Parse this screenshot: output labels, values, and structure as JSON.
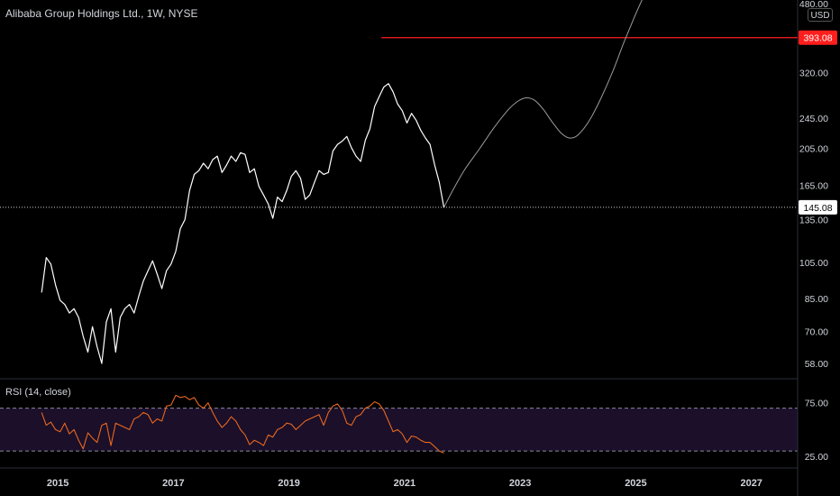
{
  "header": {
    "symbol_title": "Alibaba Group Holdings Ltd., 1W, NYSE",
    "currency": "USD"
  },
  "indicator": {
    "label": "RSI (14, close)",
    "upper_band": 70,
    "lower_band": 30,
    "axis_ticks": [
      "75.00",
      "25.00"
    ]
  },
  "colors": {
    "background": "#000000",
    "price_line": "#ffffff",
    "rsi_line": "#e8681e",
    "rsi_band_fill": "#1b0f2a",
    "target_line": "#ff1e1e",
    "projection_line": "#9c9c9c",
    "axis_text": "#d1d4dc"
  },
  "chart_data": [
    {
      "type": "line",
      "name": "price",
      "y_scale": "log",
      "x_tick_labels": [
        "2015",
        "2017",
        "2019",
        "2021",
        "2023",
        "2025",
        "2027"
      ],
      "y_tick_labels": [
        "480.00",
        "320.00",
        "245.00",
        "205.00",
        "165.00",
        "135.00",
        "105.00",
        "85.00",
        "70.00",
        "58.00"
      ],
      "price_labels": {
        "target": "393.08",
        "current": "145.08"
      },
      "series": [
        {
          "x": [
            2014.72,
            2014.8,
            2014.88,
            2014.96,
            2015.04,
            2015.12,
            2015.2,
            2015.28,
            2015.36,
            2015.44,
            2015.52,
            2015.6,
            2015.68,
            2015.76,
            2015.84,
            2015.92,
            2016.0,
            2016.08,
            2016.16,
            2016.24,
            2016.32,
            2016.4,
            2016.48,
            2016.56,
            2016.64,
            2016.72,
            2016.8,
            2016.88,
            2016.96,
            2017.04,
            2017.12,
            2017.2,
            2017.28,
            2017.36,
            2017.44,
            2017.52,
            2017.6,
            2017.68,
            2017.76,
            2017.84,
            2017.92,
            2018.0,
            2018.08,
            2018.16,
            2018.24,
            2018.32,
            2018.4,
            2018.48,
            2018.56,
            2018.64,
            2018.72,
            2018.8,
            2018.88,
            2018.96,
            2019.04,
            2019.12,
            2019.2,
            2019.28,
            2019.36,
            2019.44,
            2019.52,
            2019.6,
            2019.68,
            2019.76,
            2019.84,
            2019.92,
            2020.0,
            2020.08,
            2020.16,
            2020.24,
            2020.32,
            2020.4,
            2020.48,
            2020.56,
            2020.64,
            2020.72,
            2020.8,
            2020.88,
            2020.96,
            2021.04,
            2021.12,
            2021.2,
            2021.28,
            2021.36,
            2021.44,
            2021.52,
            2021.6,
            2021.68
          ],
          "y": [
            88,
            108,
            104,
            92,
            84,
            82,
            78,
            80,
            76,
            68,
            62,
            72,
            64,
            58,
            74,
            80,
            62,
            76,
            80,
            82,
            78,
            86,
            94,
            100,
            106,
            98,
            90,
            100,
            104,
            112,
            128,
            135,
            160,
            176,
            180,
            188,
            182,
            192,
            196,
            178,
            186,
            196,
            190,
            200,
            198,
            178,
            182,
            164,
            156,
            148,
            136,
            154,
            150,
            160,
            174,
            180,
            172,
            152,
            156,
            168,
            180,
            176,
            178,
            202,
            210,
            214,
            220,
            206,
            196,
            190,
            215,
            230,
            262,
            278,
            294,
            300,
            286,
            266,
            256,
            238,
            252,
            242,
            228,
            218,
            210,
            186,
            168,
            145
          ]
        }
      ],
      "projection": {
        "x": [
          2021.68,
          2021.85,
          2022.05,
          2022.3,
          2022.55,
          2022.8,
          2022.95,
          2023.1,
          2023.25,
          2023.4,
          2023.55,
          2023.7,
          2023.85,
          2024.0,
          2024.2,
          2024.4,
          2024.6,
          2024.8,
          2025.0,
          2025.2
        ],
        "y": [
          145,
          162,
          182,
          205,
          232,
          258,
          270,
          276,
          272,
          258,
          240,
          225,
          218,
          222,
          242,
          276,
          322,
          384,
          452,
          525
        ]
      },
      "target_line": {
        "y": 393.08,
        "x_start": 2020.6
      },
      "current_line": {
        "y": 145.08
      }
    },
    {
      "type": "line",
      "name": "rsi",
      "ylim": [
        25,
        95
      ],
      "series": [
        {
          "x": [
            2014.72,
            2014.8,
            2014.88,
            2014.96,
            2015.04,
            2015.12,
            2015.2,
            2015.28,
            2015.36,
            2015.44,
            2015.52,
            2015.6,
            2015.68,
            2015.76,
            2015.84,
            2015.92,
            2016.0,
            2016.08,
            2016.16,
            2016.24,
            2016.32,
            2016.4,
            2016.48,
            2016.56,
            2016.64,
            2016.72,
            2016.8,
            2016.88,
            2016.96,
            2017.04,
            2017.12,
            2017.2,
            2017.28,
            2017.36,
            2017.44,
            2017.52,
            2017.6,
            2017.68,
            2017.76,
            2017.84,
            2017.92,
            2018.0,
            2018.08,
            2018.16,
            2018.24,
            2018.32,
            2018.4,
            2018.48,
            2018.56,
            2018.64,
            2018.72,
            2018.8,
            2018.88,
            2018.96,
            2019.04,
            2019.12,
            2019.2,
            2019.28,
            2019.36,
            2019.44,
            2019.52,
            2019.6,
            2019.68,
            2019.76,
            2019.84,
            2019.92,
            2020.0,
            2020.08,
            2020.16,
            2020.24,
            2020.32,
            2020.4,
            2020.48,
            2020.56,
            2020.64,
            2020.72,
            2020.8,
            2020.88,
            2020.96,
            2021.04,
            2021.12,
            2021.2,
            2021.28,
            2021.36,
            2021.44,
            2021.52,
            2021.6,
            2021.68
          ],
          "y": [
            66,
            54,
            57,
            50,
            48,
            56,
            46,
            50,
            40,
            32,
            47,
            42,
            38,
            54,
            56,
            35,
            56,
            54,
            52,
            50,
            60,
            62,
            66,
            64,
            56,
            60,
            58,
            72,
            73,
            82,
            80,
            81,
            78,
            80,
            73,
            70,
            75,
            66,
            58,
            52,
            56,
            62,
            58,
            50,
            45,
            36,
            40,
            38,
            35,
            45,
            43,
            50,
            52,
            56,
            55,
            50,
            54,
            58,
            60,
            62,
            64,
            54,
            66,
            72,
            74,
            68,
            56,
            54,
            62,
            64,
            70,
            72,
            76,
            74,
            68,
            58,
            48,
            50,
            46,
            38,
            44,
            43,
            40,
            38,
            38,
            34,
            30,
            28
          ]
        }
      ]
    }
  ]
}
